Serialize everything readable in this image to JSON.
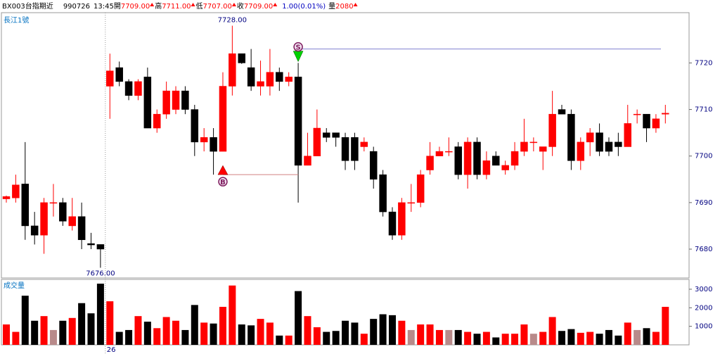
{
  "header": {
    "symbol": "BX003台指期近",
    "date": "990726",
    "time": "13:45",
    "fields": [
      {
        "label": "開",
        "value": "7709.00"
      },
      {
        "label": "高",
        "value": "7711.00"
      },
      {
        "label": "低",
        "value": "7707.00"
      },
      {
        "label": "收",
        "value": "7709.00"
      }
    ],
    "change": "1.00(0.01%)",
    "volume_label": "量",
    "volume": "2080"
  },
  "chart_data": [
    {
      "type": "candlestick",
      "title": "長江1號",
      "categories": [
        null,
        null,
        null,
        null,
        null,
        null,
        null,
        null,
        null,
        null,
        null,
        "26",
        null,
        null,
        null,
        null,
        null,
        null,
        null,
        null,
        null,
        null,
        null,
        null,
        null,
        null,
        null,
        null,
        null,
        null,
        null,
        null,
        null,
        null,
        null,
        null,
        null,
        null,
        null,
        null,
        null,
        null,
        null,
        null,
        null,
        null,
        null,
        null,
        null,
        null,
        null,
        null,
        null,
        null,
        null,
        null,
        null,
        null,
        null,
        null,
        null,
        null,
        null,
        null,
        null,
        null,
        null,
        null,
        null,
        null,
        null
      ],
      "open": [
        7690.8,
        7691,
        7694,
        7685,
        7683,
        7690,
        7690,
        7685,
        7687,
        7681.2,
        7681,
        7715,
        7719,
        7716,
        7713,
        7717,
        7706,
        7709,
        7710,
        7714,
        7710,
        7703,
        7704,
        7701,
        7715,
        7722,
        7719,
        7715,
        7715,
        7718,
        7716,
        7717,
        7698,
        7700,
        7705,
        7705,
        7704,
        7704,
        7702,
        7701,
        7696,
        7688,
        7683,
        7690,
        7690,
        7697,
        7700,
        7701,
        7702,
        7696,
        7703,
        7696,
        7700,
        7697,
        7698,
        7701,
        7703,
        7701,
        7702,
        7710,
        7709,
        7699,
        7703,
        7705,
        7703,
        7703,
        7702,
        7709,
        7709,
        7706,
        7709
      ],
      "high": [
        7691.5,
        7696,
        7703,
        7688,
        7691,
        7694,
        7691,
        7691,
        7690,
        7683.5,
        7681,
        7722,
        7720.3,
        7716.5,
        7716.5,
        7719,
        7710,
        7716,
        7715,
        7715,
        7711,
        7706,
        7706,
        7718,
        7728,
        7722,
        7723,
        7720.5,
        7723,
        7719,
        7718,
        7720,
        7705,
        7710,
        7706,
        7705,
        7705,
        7705,
        7704,
        7702,
        7697,
        7689,
        7691,
        7694,
        7697,
        7703,
        7702,
        7704,
        7703,
        7704,
        7704,
        7701,
        7701,
        7699,
        7703,
        7708,
        7704,
        7702,
        7714,
        7711,
        7710,
        7704,
        7706,
        7707,
        7704,
        7705,
        7711,
        7710,
        7709,
        7709,
        7711
      ],
      "low": [
        7690,
        7690,
        7682,
        7681,
        7679,
        7687,
        7685,
        7684,
        7680,
        7680,
        7676,
        7708,
        7715,
        7712,
        7712,
        7706,
        7705,
        7708,
        7709,
        7709,
        7700,
        7701,
        7696,
        7701,
        7713,
        7719.8,
        7714,
        7713,
        7713,
        7714,
        7715,
        7690,
        7698,
        7700,
        7703,
        7702,
        7697,
        7697,
        7701,
        7693,
        7687,
        7682,
        7682,
        7688,
        7689,
        7696,
        7700,
        7700,
        7695,
        7693,
        7695,
        7695,
        7698,
        7696,
        7697,
        7700,
        7701,
        7697,
        7700,
        7709,
        7697,
        7697,
        7700,
        7700,
        7700,
        7700,
        7702,
        7707,
        7703,
        7705,
        7707
      ],
      "close": [
        7691.3,
        7693.8,
        7685,
        7683,
        7690,
        7690,
        7686,
        7687,
        7682,
        7680.9,
        7680,
        7718.3,
        7716,
        7713,
        7716,
        7706,
        7709,
        7714,
        7714,
        7710,
        7703,
        7704,
        7701,
        7715,
        7722,
        7720,
        7715,
        7716,
        7718,
        7716,
        7717,
        7698,
        7700,
        7706,
        7704,
        7704,
        7699,
        7699,
        7703,
        7695,
        7688,
        7683,
        7690,
        7690,
        7696,
        7700,
        7701,
        7701,
        7696,
        7703,
        7696,
        7699,
        7698,
        7698,
        7701,
        7703,
        7703,
        7702,
        7709,
        7709,
        7699,
        7703,
        7705,
        7701,
        7701,
        7702,
        7707,
        7709,
        7706,
        7708,
        7709.2
      ],
      "ylim": [
        7673.8,
        7730.8
      ],
      "yticks": [
        7680,
        7690,
        7700,
        7710,
        7720
      ],
      "up_color": "#ff0000",
      "down_color": "#000000",
      "annotations": [
        {
          "label": "7728.00",
          "value": 7728,
          "index": 24
        },
        {
          "label": "7676.00",
          "value": 7676,
          "index": 10
        }
      ],
      "signals": [
        {
          "label": "B",
          "index": 23,
          "value": 7696,
          "direction": "up",
          "color": "#ff0000"
        },
        {
          "label": "S",
          "index": 31,
          "value": 7723,
          "direction": "down",
          "color": "#00d000"
        }
      ]
    },
    {
      "type": "bar",
      "title": "成交量",
      "values": [
        1100,
        700,
        2650,
        1300,
        1550,
        800,
        1300,
        1450,
        2250,
        1700,
        3300,
        2350,
        700,
        800,
        1550,
        1250,
        900,
        1500,
        1300,
        800,
        2150,
        1200,
        1150,
        2050,
        3200,
        1100,
        1050,
        1400,
        1200,
        500,
        500,
        2900,
        1550,
        950,
        700,
        750,
        1300,
        1200,
        600,
        1400,
        1650,
        1600,
        1300,
        800,
        1100,
        1100,
        800,
        800,
        800,
        700,
        600,
        700,
        400,
        600,
        600,
        1100,
        600,
        700,
        1500,
        750,
        850,
        650,
        700,
        600,
        800,
        500,
        1200,
        800,
        900,
        700,
        2050
      ],
      "ylim": [
        0,
        3530
      ],
      "yticks": [
        1000,
        2000,
        3000
      ],
      "flat_color": "#b88a8a"
    }
  ]
}
